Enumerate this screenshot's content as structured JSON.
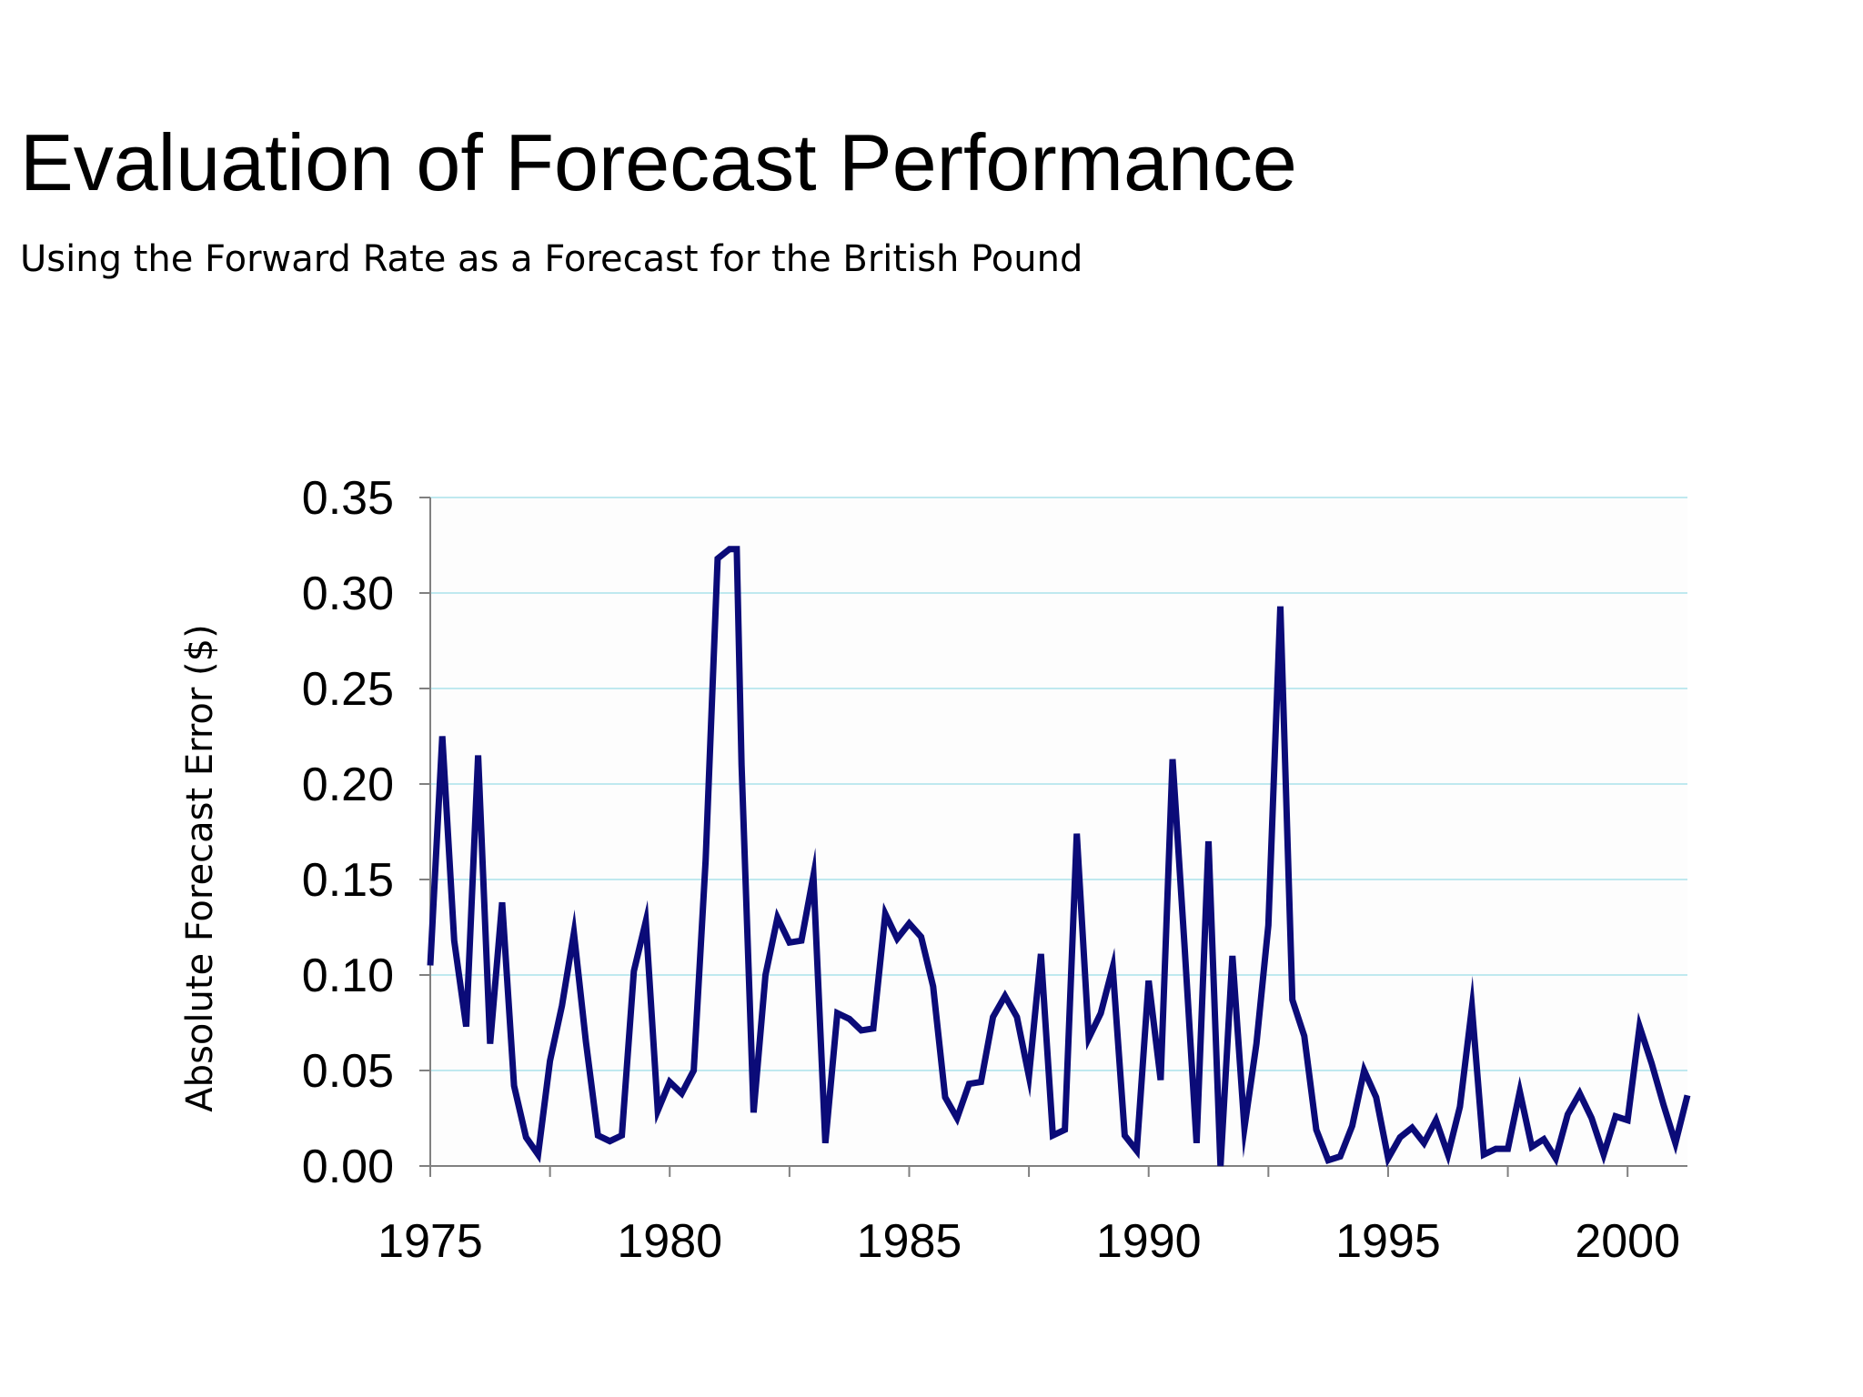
{
  "slide": {
    "title": "Evaluation of Forecast Performance",
    "subtitle": "Using the Forward Rate as a Forecast for the British Pound"
  },
  "chart_data": {
    "type": "line",
    "title": "",
    "xlabel": "",
    "ylabel": "Absolute Forecast Error ($)",
    "xlim": [
      1975,
      2001.25
    ],
    "ylim": [
      0,
      0.35
    ],
    "x_ticks": [
      "1975",
      "1980",
      "1985",
      "1990",
      "1995",
      "2000"
    ],
    "y_ticks": [
      "0.00",
      "0.05",
      "0.10",
      "0.15",
      "0.20",
      "0.25",
      "0.30",
      "0.35"
    ],
    "grid": true,
    "colors": {
      "line": "#0b0b78",
      "grid": "#bfe9ef",
      "axis": "#808080",
      "plot_bg": "#fdfdfd"
    },
    "series": [
      {
        "x": [
          1975.0,
          1975.25,
          1975.5,
          1975.75,
          1976.0,
          1976.25,
          1976.5,
          1976.75,
          1977.0,
          1977.25,
          1977.5,
          1977.75,
          1978.0,
          1978.25,
          1978.5,
          1978.75,
          1979.0,
          1979.25,
          1979.5,
          1979.75,
          1980.0,
          1980.25,
          1980.5,
          1980.75,
          1981.0,
          1981.25,
          1981.4,
          1981.5,
          1981.75,
          1982.0,
          1982.25,
          1982.5,
          1982.75,
          1983.0,
          1983.25,
          1983.5,
          1983.75,
          1984.0,
          1984.25,
          1984.5,
          1984.75,
          1985.0,
          1985.25,
          1985.5,
          1985.75,
          1986.0,
          1986.25,
          1986.5,
          1986.75,
          1987.0,
          1987.25,
          1987.5,
          1987.75,
          1988.0,
          1988.25,
          1988.5,
          1988.75,
          1989.0,
          1989.25,
          1989.5,
          1989.75,
          1990.0,
          1990.25,
          1990.5,
          1990.75,
          1991.0,
          1991.25,
          1991.5,
          1991.75,
          1992.0,
          1992.25,
          1992.5,
          1992.75,
          1993.0,
          1993.25,
          1993.5,
          1993.75,
          1994.0,
          1994.25,
          1994.5,
          1994.75,
          1995.0,
          1995.25,
          1995.5,
          1995.75,
          1996.0,
          1996.25,
          1996.5,
          1996.75,
          1997.0,
          1997.25,
          1997.5,
          1997.75,
          1998.0,
          1998.25,
          1998.5,
          1998.75,
          1999.0,
          1999.25,
          1999.5,
          1999.75,
          2000.0,
          2000.25,
          2000.5,
          2000.75,
          2001.0,
          2001.25
        ],
        "y": [
          0.105,
          0.225,
          0.118,
          0.073,
          0.215,
          0.064,
          0.138,
          0.042,
          0.015,
          0.006,
          0.055,
          0.084,
          0.122,
          0.065,
          0.016,
          0.013,
          0.016,
          0.102,
          0.128,
          0.029,
          0.044,
          0.038,
          0.05,
          0.16,
          0.318,
          0.323,
          0.323,
          0.21,
          0.028,
          0.1,
          0.13,
          0.117,
          0.118,
          0.152,
          0.012,
          0.08,
          0.077,
          0.071,
          0.072,
          0.132,
          0.119,
          0.127,
          0.12,
          0.094,
          0.036,
          0.025,
          0.043,
          0.044,
          0.078,
          0.089,
          0.078,
          0.047,
          0.111,
          0.016,
          0.019,
          0.174,
          0.067,
          0.08,
          0.104,
          0.016,
          0.008,
          0.097,
          0.045,
          0.213,
          0.115,
          0.012,
          0.17,
          0.0,
          0.11,
          0.02,
          0.064,
          0.126,
          0.293,
          0.087,
          0.068,
          0.019,
          0.003,
          0.005,
          0.021,
          0.05,
          0.036,
          0.004,
          0.015,
          0.02,
          0.012,
          0.024,
          0.006,
          0.031,
          0.083,
          0.006,
          0.009,
          0.009,
          0.039,
          0.01,
          0.014,
          0.004,
          0.027,
          0.038,
          0.025,
          0.006,
          0.026,
          0.024,
          0.073,
          0.054,
          0.032,
          0.012,
          0.037
        ]
      }
    ]
  }
}
